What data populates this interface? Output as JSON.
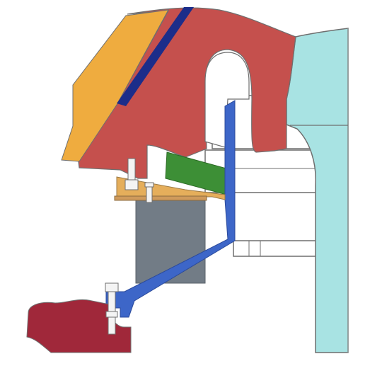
{
  "diagram": {
    "labels": [],
    "colors": {
      "background": "#ffffff",
      "outline": "#6f6f6f",
      "rotor_body": "#c5504d",
      "wear_liner_orange": "#efac3f",
      "liner_strip_blue": "#1c2d8a",
      "cyan_hub": "#a8e3e3",
      "blue_support_frame": "#3d66c8",
      "green_wedge": "#3d8f36",
      "orange_bracket": "#e5ae5b",
      "brown_plate": "#cf9a5c",
      "gray_block": "#727c86",
      "dark_red_base": "#a0283a",
      "bolt": "#f4f4f4"
    }
  }
}
